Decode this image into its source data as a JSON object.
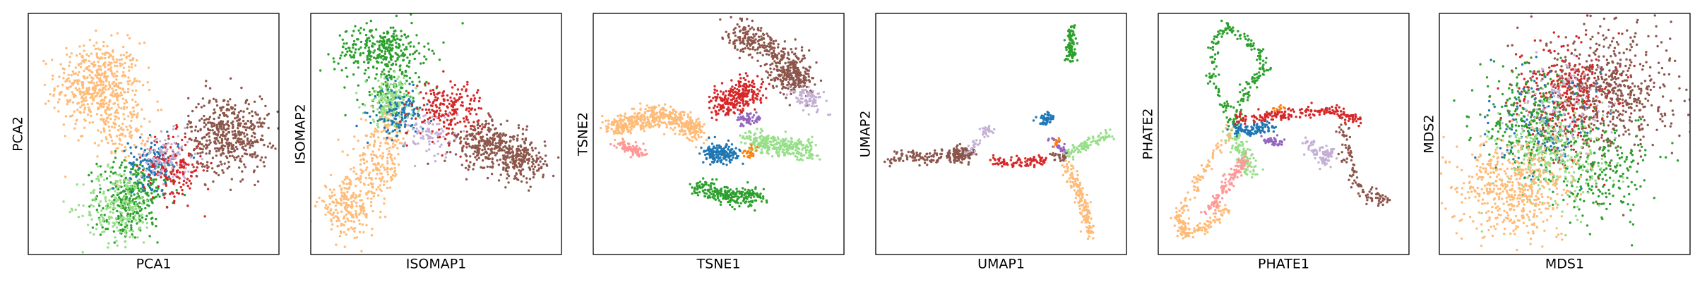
{
  "chart_data": [
    {
      "type": "scatter",
      "xlabel": "PCA1",
      "ylabel": "PCA2",
      "series": [
        {
          "color": "#ffbb78",
          "points": [
            {
              "x": 0.28,
              "y": 0.7,
              "sx": 0.085,
              "sy": 0.09,
              "n": 520
            },
            {
              "x": 0.38,
              "y": 0.52,
              "sx": 0.05,
              "sy": 0.06,
              "n": 110
            }
          ]
        },
        {
          "color": "#2ca02c",
          "points": [
            {
              "x": 0.42,
              "y": 0.26,
              "sx": 0.07,
              "sy": 0.07,
              "n": 260
            },
            {
              "x": 0.38,
              "y": 0.16,
              "sx": 0.05,
              "sy": 0.05,
              "n": 80
            }
          ]
        },
        {
          "color": "#98df8a",
          "points": [
            {
              "x": 0.36,
              "y": 0.2,
              "sx": 0.07,
              "sy": 0.08,
              "n": 220
            }
          ]
        },
        {
          "color": "#1f77b4",
          "points": [
            {
              "x": 0.5,
              "y": 0.38,
              "sx": 0.05,
              "sy": 0.05,
              "n": 130
            }
          ]
        },
        {
          "color": "#d62728",
          "points": [
            {
              "x": 0.58,
              "y": 0.36,
              "sx": 0.06,
              "sy": 0.07,
              "n": 170
            }
          ]
        },
        {
          "color": "#c5b0d5",
          "points": [
            {
              "x": 0.55,
              "y": 0.4,
              "sx": 0.05,
              "sy": 0.05,
              "n": 100
            }
          ]
        },
        {
          "color": "#8c564b",
          "points": [
            {
              "x": 0.8,
              "y": 0.5,
              "sx": 0.08,
              "sy": 0.08,
              "n": 480
            }
          ]
        }
      ]
    },
    {
      "type": "scatter",
      "xlabel": "ISOMAP1",
      "ylabel": "ISOMAP2",
      "series": [
        {
          "color": "#2ca02c",
          "points": [
            {
              "x": 0.28,
              "y": 0.85,
              "sx": 0.09,
              "sy": 0.05,
              "n": 300
            },
            {
              "x": 0.32,
              "y": 0.68,
              "sx": 0.06,
              "sy": 0.06,
              "n": 120
            }
          ]
        },
        {
          "color": "#98df8a",
          "points": [
            {
              "x": 0.32,
              "y": 0.63,
              "sx": 0.05,
              "sy": 0.05,
              "n": 200
            }
          ]
        },
        {
          "color": "#ffbb78",
          "points": [
            {
              "x": 0.15,
              "y": 0.2,
              "sx": 0.06,
              "sy": 0.06,
              "n": 220
            },
            {
              "x": 0.26,
              "y": 0.36,
              "sx": 0.05,
              "sy": 0.07,
              "n": 150
            },
            {
              "x": 0.32,
              "y": 0.5,
              "sx": 0.04,
              "sy": 0.05,
              "n": 70
            }
          ]
        },
        {
          "color": "#1f77b4",
          "points": [
            {
              "x": 0.35,
              "y": 0.58,
              "sx": 0.05,
              "sy": 0.05,
              "n": 120
            }
          ]
        },
        {
          "color": "#d62728",
          "points": [
            {
              "x": 0.55,
              "y": 0.6,
              "sx": 0.07,
              "sy": 0.06,
              "n": 220
            }
          ]
        },
        {
          "color": "#c5b0d5",
          "points": [
            {
              "x": 0.48,
              "y": 0.5,
              "sx": 0.05,
              "sy": 0.05,
              "n": 80
            }
          ]
        },
        {
          "color": "#8c564b",
          "points": [
            {
              "x": 0.72,
              "y": 0.45,
              "sx": 0.07,
              "sy": 0.05,
              "n": 300
            },
            {
              "x": 0.84,
              "y": 0.38,
              "sx": 0.05,
              "sy": 0.04,
              "n": 180
            }
          ]
        }
      ]
    },
    {
      "type": "scatter",
      "xlabel": "TSNE1",
      "ylabel": "TSNE2",
      "series": [
        {
          "color": "#ffbb78",
          "path": [
            [
              0.07,
              0.52
            ],
            [
              0.16,
              0.55
            ],
            [
              0.27,
              0.58
            ],
            [
              0.36,
              0.55
            ],
            [
              0.43,
              0.5
            ]
          ],
          "spread": 0.022,
          "n": 480
        },
        {
          "color": "#ff9896",
          "path": [
            [
              0.1,
              0.46
            ],
            [
              0.2,
              0.42
            ]
          ],
          "spread": 0.012,
          "n": 90
        },
        {
          "color": "#8c564b",
          "path": [
            [
              0.55,
              0.92
            ],
            [
              0.68,
              0.88
            ],
            [
              0.79,
              0.78
            ],
            [
              0.82,
              0.72
            ],
            [
              0.74,
              0.75
            ]
          ],
          "spread": 0.035,
          "n": 480
        },
        {
          "color": "#d62728",
          "path": [
            [
              0.5,
              0.62
            ],
            [
              0.58,
              0.66
            ],
            [
              0.65,
              0.68
            ]
          ],
          "spread": 0.03,
          "n": 260
        },
        {
          "color": "#c5b0d5",
          "path": [
            [
              0.82,
              0.68
            ],
            [
              0.9,
              0.62
            ]
          ],
          "spread": 0.022,
          "n": 90
        },
        {
          "color": "#9467bd",
          "path": [
            [
              0.58,
              0.55
            ],
            [
              0.66,
              0.57
            ]
          ],
          "spread": 0.012,
          "n": 50
        },
        {
          "color": "#98df8a",
          "path": [
            [
              0.62,
              0.48
            ],
            [
              0.74,
              0.45
            ],
            [
              0.88,
              0.43
            ]
          ],
          "spread": 0.022,
          "n": 280
        },
        {
          "color": "#1f77b4",
          "path": [
            [
              0.46,
              0.42
            ],
            [
              0.56,
              0.42
            ]
          ],
          "spread": 0.02,
          "n": 170
        },
        {
          "color": "#ff7f0e",
          "path": [
            [
              0.6,
              0.42
            ],
            [
              0.66,
              0.43
            ]
          ],
          "spread": 0.01,
          "n": 25
        },
        {
          "color": "#2ca02c",
          "path": [
            [
              0.42,
              0.28
            ],
            [
              0.55,
              0.24
            ],
            [
              0.66,
              0.24
            ]
          ],
          "spread": 0.02,
          "n": 240
        }
      ]
    },
    {
      "type": "scatter",
      "xlabel": "UMAP1",
      "ylabel": "UMAP2",
      "series": [
        {
          "color": "#8c564b",
          "path": [
            [
              0.05,
              0.4
            ],
            [
              0.3,
              0.41
            ],
            [
              0.38,
              0.42
            ]
          ],
          "spread": 0.015,
          "n": 220,
          "extra": {
            "path": [
              [
                0.71,
                0.41
              ],
              [
                0.76,
                0.4
              ]
            ],
            "spread": 0.01,
            "n": 30
          }
        },
        {
          "color": "#c5b0d5",
          "path": [
            [
              0.37,
              0.42
            ],
            [
              0.43,
              0.5
            ],
            [
              0.46,
              0.52
            ]
          ],
          "spread": 0.012,
          "n": 45
        },
        {
          "color": "#d62728",
          "path": [
            [
              0.46,
              0.39
            ],
            [
              0.58,
              0.38
            ],
            [
              0.67,
              0.39
            ]
          ],
          "spread": 0.01,
          "n": 90
        },
        {
          "color": "#2ca02c",
          "path": [
            [
              0.78,
              0.95
            ],
            [
              0.78,
              0.8
            ]
          ],
          "spread": 0.01,
          "n": 90
        },
        {
          "color": "#1f77b4",
          "path": [
            [
              0.66,
              0.55
            ],
            [
              0.7,
              0.57
            ]
          ],
          "spread": 0.014,
          "n": 50
        },
        {
          "color": "#9467bd",
          "path": [
            [
              0.7,
              0.48
            ],
            [
              0.75,
              0.43
            ]
          ],
          "spread": 0.01,
          "n": 28
        },
        {
          "color": "#98df8a",
          "path": [
            [
              0.77,
              0.42
            ],
            [
              0.86,
              0.47
            ],
            [
              0.94,
              0.5
            ]
          ],
          "spread": 0.012,
          "n": 100
        },
        {
          "color": "#ffbb78",
          "path": [
            [
              0.76,
              0.38
            ],
            [
              0.8,
              0.28
            ],
            [
              0.84,
              0.18
            ],
            [
              0.85,
              0.06
            ]
          ],
          "spread": 0.012,
          "n": 160
        },
        {
          "color": "#ff7f0e",
          "path": [
            [
              0.71,
              0.46
            ],
            [
              0.73,
              0.47
            ]
          ],
          "spread": 0.006,
          "n": 10
        }
      ]
    },
    {
      "type": "scatter",
      "xlabel": "PHATE1",
      "ylabel": "PHATE2",
      "series": [
        {
          "color": "#2ca02c",
          "path": [
            [
              0.3,
              0.52
            ],
            [
              0.22,
              0.72
            ],
            [
              0.22,
              0.88
            ],
            [
              0.27,
              0.95
            ],
            [
              0.37,
              0.88
            ],
            [
              0.43,
              0.78
            ],
            [
              0.35,
              0.68
            ],
            [
              0.3,
              0.54
            ]
          ],
          "spread": 0.012,
          "n": 220
        },
        {
          "color": "#98df8a",
          "path": [
            [
              0.3,
              0.5
            ],
            [
              0.34,
              0.42
            ],
            [
              0.38,
              0.33
            ]
          ],
          "spread": 0.02,
          "n": 110
        },
        {
          "color": "#ffbb78",
          "path": [
            [
              0.29,
              0.52
            ],
            [
              0.18,
              0.35
            ],
            [
              0.08,
              0.16
            ],
            [
              0.1,
              0.08
            ],
            [
              0.18,
              0.11
            ],
            [
              0.28,
              0.2
            ]
          ],
          "spread": 0.012,
          "n": 210
        },
        {
          "color": "#ff9896",
          "path": [
            [
              0.35,
              0.4
            ],
            [
              0.28,
              0.3
            ],
            [
              0.2,
              0.18
            ]
          ],
          "spread": 0.012,
          "n": 120
        },
        {
          "color": "#1f77b4",
          "path": [
            [
              0.3,
              0.52
            ],
            [
              0.38,
              0.52
            ],
            [
              0.45,
              0.53
            ]
          ],
          "spread": 0.014,
          "n": 110
        },
        {
          "color": "#d62728",
          "path": [
            [
              0.31,
              0.56
            ],
            [
              0.5,
              0.58
            ],
            [
              0.7,
              0.6
            ],
            [
              0.8,
              0.55
            ]
          ],
          "spread": 0.012,
          "n": 200
        },
        {
          "color": "#8c564b",
          "path": [
            [
              0.73,
              0.55
            ],
            [
              0.76,
              0.4
            ],
            [
              0.8,
              0.28
            ],
            [
              0.92,
              0.22
            ],
            [
              0.82,
              0.24
            ]
          ],
          "spread": 0.013,
          "n": 110
        },
        {
          "color": "#c5b0d5",
          "path": [
            [
              0.6,
              0.46
            ],
            [
              0.66,
              0.38
            ],
            [
              0.68,
              0.44
            ]
          ],
          "spread": 0.016,
          "n": 90
        },
        {
          "color": "#9467bd",
          "path": [
            [
              0.42,
              0.48
            ],
            [
              0.5,
              0.46
            ]
          ],
          "spread": 0.01,
          "n": 40
        },
        {
          "color": "#ff7f0e",
          "path": [
            [
              0.46,
              0.6
            ],
            [
              0.5,
              0.61
            ]
          ],
          "spread": 0.006,
          "n": 10
        }
      ]
    },
    {
      "type": "scatter",
      "xlabel": "MDS1",
      "ylabel": "MDS2",
      "series": [
        {
          "color": "#8c564b",
          "points": [
            {
              "x": 0.68,
              "y": 0.68,
              "sx": 0.13,
              "sy": 0.13,
              "n": 620
            }
          ]
        },
        {
          "color": "#d62728",
          "points": [
            {
              "x": 0.5,
              "y": 0.65,
              "sx": 0.1,
              "sy": 0.12,
              "n": 320
            }
          ]
        },
        {
          "color": "#c5b0d5",
          "points": [
            {
              "x": 0.48,
              "y": 0.6,
              "sx": 0.09,
              "sy": 0.1,
              "n": 140
            }
          ]
        },
        {
          "color": "#1f77b4",
          "points": [
            {
              "x": 0.4,
              "y": 0.52,
              "sx": 0.1,
              "sy": 0.1,
              "n": 140
            }
          ]
        },
        {
          "color": "#2ca02c",
          "points": [
            {
              "x": 0.35,
              "y": 0.55,
              "sx": 0.1,
              "sy": 0.12,
              "n": 260
            },
            {
              "x": 0.65,
              "y": 0.35,
              "sx": 0.1,
              "sy": 0.1,
              "n": 220
            }
          ]
        },
        {
          "color": "#98df8a",
          "points": [
            {
              "x": 0.45,
              "y": 0.4,
              "sx": 0.11,
              "sy": 0.11,
              "n": 260
            }
          ]
        },
        {
          "color": "#ffbb78",
          "points": [
            {
              "x": 0.3,
              "y": 0.28,
              "sx": 0.11,
              "sy": 0.1,
              "n": 520
            }
          ]
        }
      ]
    }
  ]
}
